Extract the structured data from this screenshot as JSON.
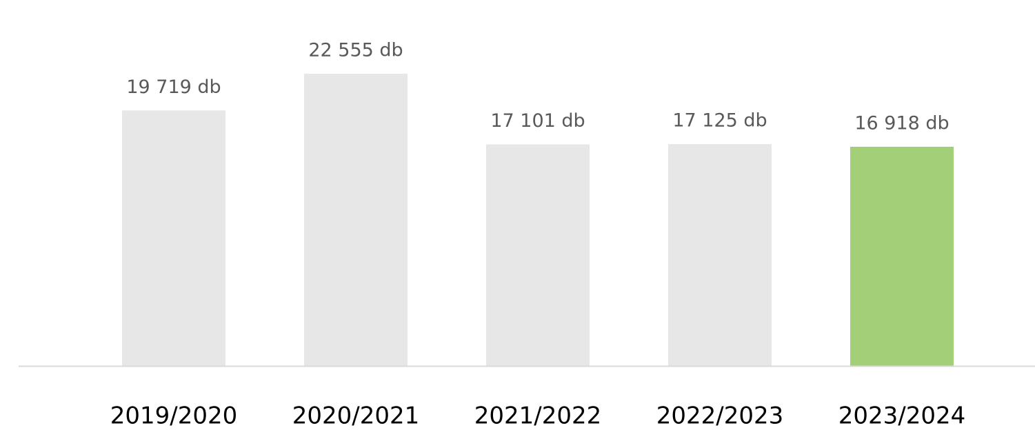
{
  "chart_data": {
    "type": "bar",
    "categories": [
      "2019/2020",
      "2020/2021",
      "2021/2022",
      "2022/2023",
      "2023/2024"
    ],
    "values": [
      19719,
      22555,
      17101,
      17125,
      16918
    ],
    "value_labels": [
      "19 719 db",
      "22 555 db",
      "17 101 db",
      "17 125 db",
      "16 918 db"
    ],
    "colors": [
      "#e7e7e7",
      "#e7e7e7",
      "#e7e7e7",
      "#e7e7e7",
      "#a3cf78"
    ],
    "grid": false
  }
}
